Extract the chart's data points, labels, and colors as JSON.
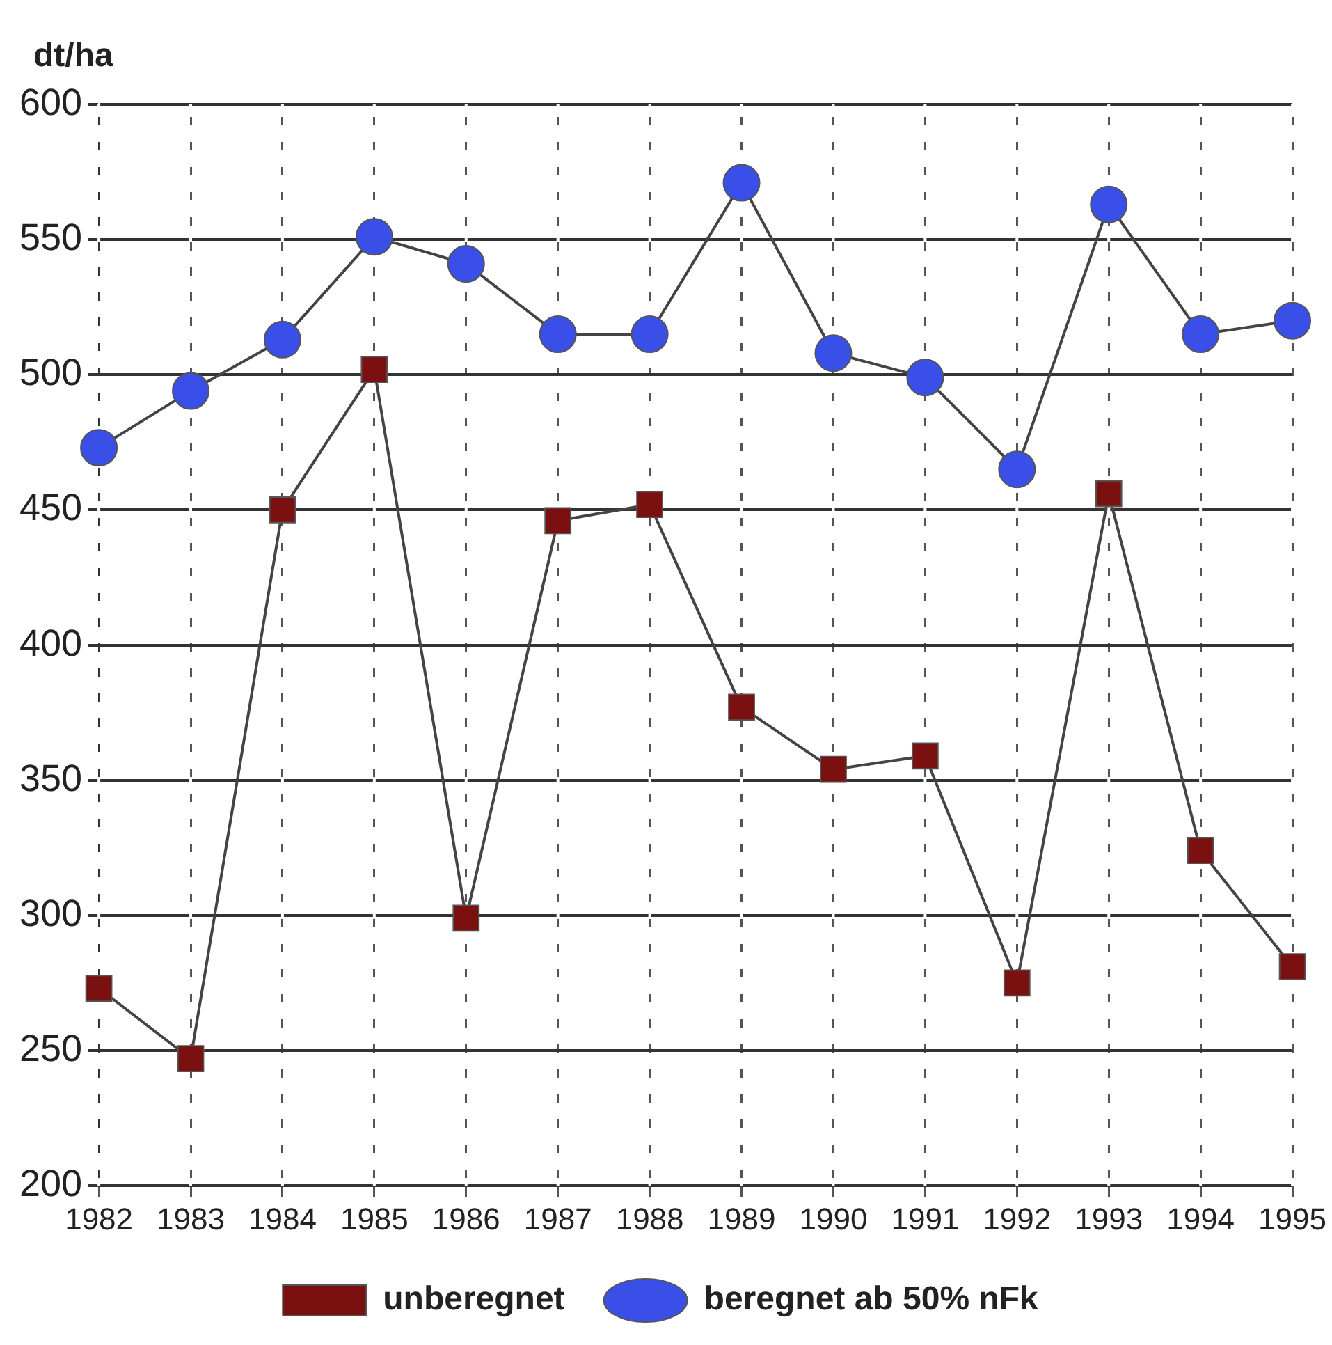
{
  "chart_data": {
    "type": "line",
    "ylabel": "dt/ha",
    "categories": [
      "1982",
      "1983",
      "1984",
      "1985",
      "1986",
      "1987",
      "1988",
      "1989",
      "1990",
      "1991",
      "1992",
      "1993",
      "1994",
      "1995"
    ],
    "series": [
      {
        "name": "unberegnet",
        "color": "#7a1010",
        "marker": "square",
        "values": [
          273,
          247,
          450,
          502,
          299,
          446,
          452,
          377,
          354,
          359,
          275,
          456,
          324,
          281
        ]
      },
      {
        "name": "beregnet ab 50% nFk",
        "color": "#3a4fe8",
        "marker": "circle",
        "values": [
          473,
          494,
          513,
          551,
          541,
          515,
          515,
          571,
          508,
          499,
          465,
          563,
          515,
          520
        ]
      }
    ],
    "ylim": [
      200,
      600
    ],
    "yticks": [
      200,
      250,
      300,
      350,
      400,
      450,
      500,
      550,
      600
    ],
    "grid": true,
    "legend": "bottom",
    "line_style": "solid"
  }
}
